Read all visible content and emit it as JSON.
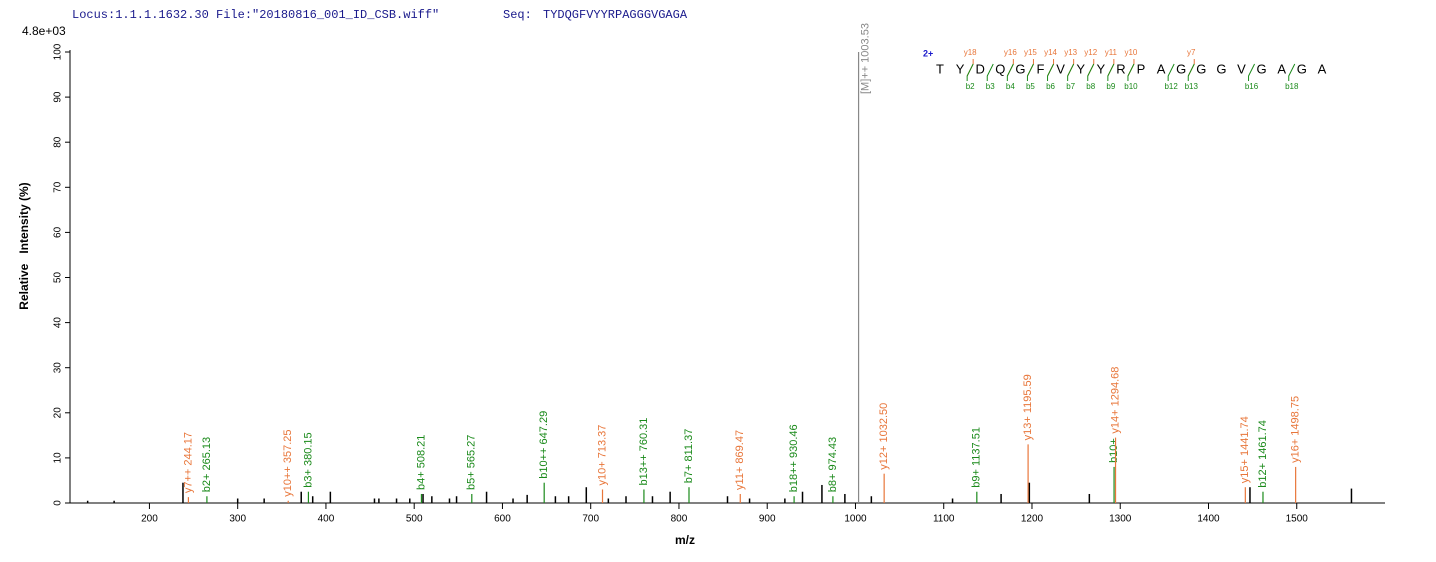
{
  "chart_data": {
    "type": "spectrum",
    "locus": "Locus:1.1.1.1632.30 File:\"20180816_001_ID_CSB.wiff\"",
    "seq_label": "Seq:",
    "sequence": "TYDQGFVYYRPAGGGVGAGA",
    "scale_label": "4.8e+03",
    "x_label": "m/z",
    "y_label": "Relative   Intensity (%)",
    "xlim": [
      110,
      1600
    ],
    "ylim": [
      0,
      100
    ],
    "xticks": [
      200,
      300,
      400,
      500,
      600,
      700,
      800,
      900,
      1000,
      1100,
      1200,
      1300,
      1400,
      1500
    ],
    "yticks": [
      0,
      10,
      20,
      30,
      40,
      50,
      60,
      70,
      80,
      90,
      100
    ],
    "peak_color": "#000000",
    "peaks": {
      "x": [
        130,
        160,
        238,
        300,
        330,
        372,
        385,
        405,
        455,
        460,
        480,
        495,
        510,
        520,
        540,
        548,
        582,
        612,
        628,
        660,
        675,
        695,
        720,
        740,
        770,
        790,
        855,
        880,
        920,
        940,
        962,
        988,
        1018,
        1110,
        1165,
        1197,
        1265,
        1447,
        1562
      ],
      "values": [
        0.5,
        0.5,
        4.5,
        1,
        1,
        2.5,
        1.5,
        2.5,
        1,
        1,
        1,
        1,
        2,
        1.5,
        1,
        1.5,
        2.5,
        1,
        1.8,
        1.5,
        1.5,
        3.5,
        1,
        1.5,
        1.5,
        2.5,
        1.5,
        1,
        1,
        2.5,
        4,
        2,
        1.5,
        1,
        2,
        4.5,
        2,
        3.5,
        3.2
      ]
    },
    "annotations": [
      {
        "label": "y7++ 244.17",
        "x": 244.17,
        "value": 1.3,
        "color": "#e8763a"
      },
      {
        "label": "b2+ 265.13",
        "x": 265.13,
        "value": 1.5,
        "color": "#1a8a1a"
      },
      {
        "label": "y10++ 357.25",
        "x": 357.25,
        "value": 0.5,
        "color": "#e8763a"
      },
      {
        "label": "b3+ 380.15",
        "x": 380.15,
        "value": 2.5,
        "color": "#1a8a1a"
      },
      {
        "label": "b4+ 508.21",
        "x": 508.21,
        "value": 2,
        "color": "#1a8a1a"
      },
      {
        "label": "b5+ 565.27",
        "x": 565.27,
        "value": 2,
        "color": "#1a8a1a"
      },
      {
        "label": "b10++ 647.29",
        "x": 647.29,
        "value": 4.5,
        "color": "#1a8a1a"
      },
      {
        "label": "y10+ 713.37",
        "x": 713.37,
        "value": 3,
        "color": "#e8763a"
      },
      {
        "label": "b13++ 760.31",
        "x": 760.31,
        "value": 3,
        "color": "#1a8a1a"
      },
      {
        "label": "b7+ 811.37",
        "x": 811.37,
        "value": 3.5,
        "color": "#1a8a1a"
      },
      {
        "label": "y11+ 869.47",
        "x": 869.47,
        "value": 2,
        "color": "#e8763a"
      },
      {
        "label": "b18++ 930.46",
        "x": 930.46,
        "value": 1.5,
        "color": "#1a8a1a"
      },
      {
        "label": "b8+ 974.43",
        "x": 974.43,
        "value": 1.5,
        "color": "#1a8a1a"
      },
      {
        "label": "[M]++ 1003.53",
        "x": 1003.53,
        "value": 100,
        "color": "#888888"
      },
      {
        "label": "y12+ 1032.50",
        "x": 1032.5,
        "value": 6.5,
        "color": "#e8763a"
      },
      {
        "label": "b9+ 1137.51",
        "x": 1137.51,
        "value": 2.5,
        "color": "#1a8a1a"
      },
      {
        "label": "y13+ 1195.59",
        "x": 1195.59,
        "value": 13,
        "color": "#e8763a"
      },
      {
        "label": "b10+",
        "x": 1293,
        "value": 8,
        "color": "#1a8a1a"
      },
      {
        "label": "y14+ 1294.68",
        "x": 1294.68,
        "value": 14.5,
        "color": "#e8763a"
      },
      {
        "label": "y15+ 1441.74",
        "x": 1441.74,
        "value": 3.5,
        "color": "#e8763a"
      },
      {
        "label": "b12+ 1461.74",
        "x": 1461.74,
        "value": 2.5,
        "color": "#1a8a1a"
      },
      {
        "label": "y16+ 1498.75",
        "x": 1498.75,
        "value": 8,
        "color": "#e8763a"
      }
    ],
    "ladder": {
      "charge": "2+",
      "charge_color": "#1a1acc",
      "y_color": "#e8763a",
      "b_color": "#1a8a1a",
      "residues": [
        "T",
        "Y",
        "D",
        "Q",
        "G",
        "F",
        "V",
        "Y",
        "Y",
        "R",
        "P",
        "A",
        "G",
        "G",
        "G",
        "V",
        "G",
        "A",
        "G",
        "A"
      ],
      "y_labels": [
        null,
        "y18",
        null,
        "y16",
        "y15",
        "y14",
        "y13",
        "y12",
        "y11",
        "y10",
        null,
        null,
        "y7",
        null,
        null,
        null,
        null,
        null,
        null
      ],
      "b_labels": [
        null,
        "b2",
        "b3",
        "b4",
        "b5",
        "b6",
        "b7",
        "b8",
        "b9",
        "b10",
        null,
        "b12",
        "b13",
        null,
        null,
        "b16",
        null,
        "b18",
        null
      ]
    }
  }
}
